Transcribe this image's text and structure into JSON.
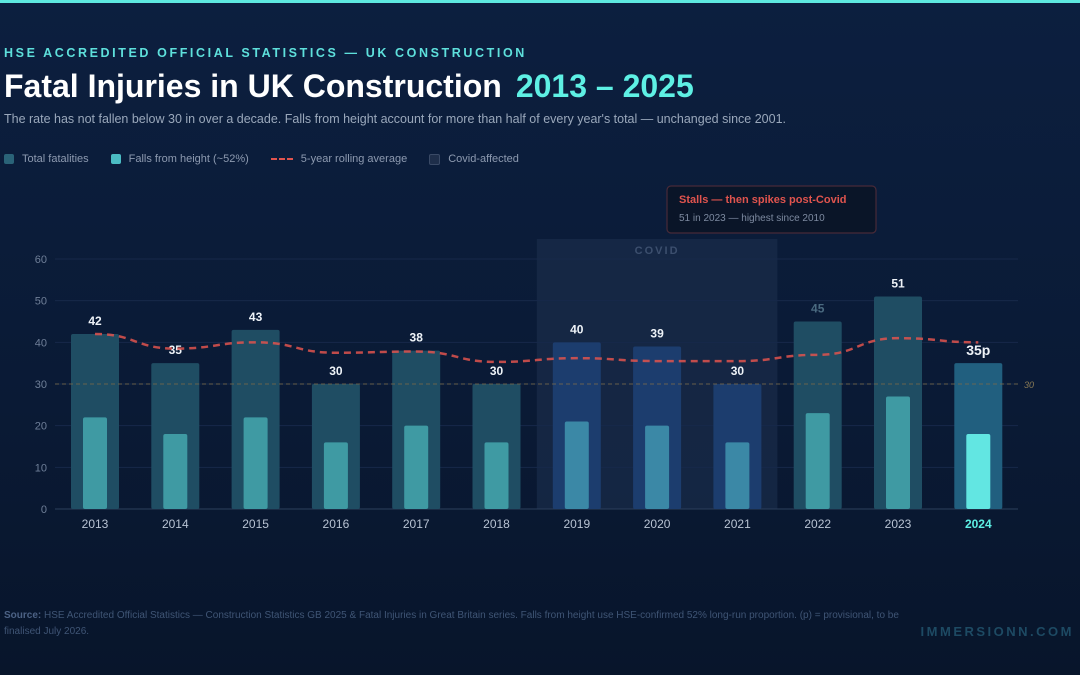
{
  "header": {
    "kicker": "HSE ACCREDITED OFFICIAL STATISTICS — UK CONSTRUCTION",
    "title": "Fatal Injuries in UK Construction",
    "title_years": "2013 – 2025",
    "subtitle": "The rate has not fallen below 30 in over a decade. Falls from height account for more than half of every year's total — unchanged since 2001."
  },
  "legend": [
    {
      "label": "Total fatalities",
      "color": "#2a6378"
    },
    {
      "label": "Falls from height (~52%)",
      "color": "#4bbcc4"
    },
    {
      "label": "5-year rolling average",
      "color": "#e0544e"
    },
    {
      "label": "Covid-affected",
      "color": "#1e2e4a"
    }
  ],
  "chart_data": {
    "type": "bar",
    "categories": [
      "2013",
      "2014",
      "2015",
      "2016",
      "2017",
      "2018",
      "2019",
      "2020",
      "2021",
      "2022",
      "2023",
      "2024"
    ],
    "series": [
      {
        "name": "Total fatalities",
        "values": [
          42,
          35,
          43,
          30,
          38,
          30,
          40,
          39,
          30,
          45,
          51,
          35
        ]
      },
      {
        "name": "Falls from height (~52%)",
        "values": [
          22,
          18,
          22,
          16,
          20,
          16,
          21,
          20,
          16,
          23,
          27,
          18
        ]
      },
      {
        "name": "5-year rolling average",
        "type": "line",
        "values": [
          42,
          38.5,
          40,
          37.5,
          37.8,
          35.3,
          36.2,
          35.5,
          35.5,
          37,
          41,
          40
        ]
      }
    ],
    "data_labels": [
      "42",
      "35",
      "43",
      "30",
      "38",
      "30",
      "40",
      "39",
      "30",
      "45",
      "51",
      "35p"
    ],
    "ylim": [
      0,
      60
    ],
    "yticks": [
      "0",
      "10",
      "20",
      "30",
      "40",
      "50",
      "60"
    ],
    "grid": true,
    "reference_line": {
      "value": 30,
      "label": "30"
    },
    "covid_band": {
      "from": "2019",
      "to": "2021",
      "label": "COVID"
    },
    "highlight_category": "2024",
    "colors": {
      "total": "#1f4d63",
      "covid_total": "#1c3d6e",
      "falls": "#3f9aa3",
      "highlight_total": "#215f7f",
      "highlight_falls": "#62e6e2",
      "average": "#e0544e"
    },
    "annotation": {
      "title": "Stalls — then spikes post-Covid",
      "text": "51 in 2023 — highest since 2010"
    }
  },
  "footer": {
    "source_label": "Source:",
    "source_text": "HSE Accredited Official Statistics — Construction Statistics GB 2025 & Fatal Injuries in Great Britain series.   Falls from height use HSE-confirmed 52% long-run proportion.   (p) = provisional, to be finalised July 2026.",
    "brand": "IMMERSIONN.COM"
  }
}
